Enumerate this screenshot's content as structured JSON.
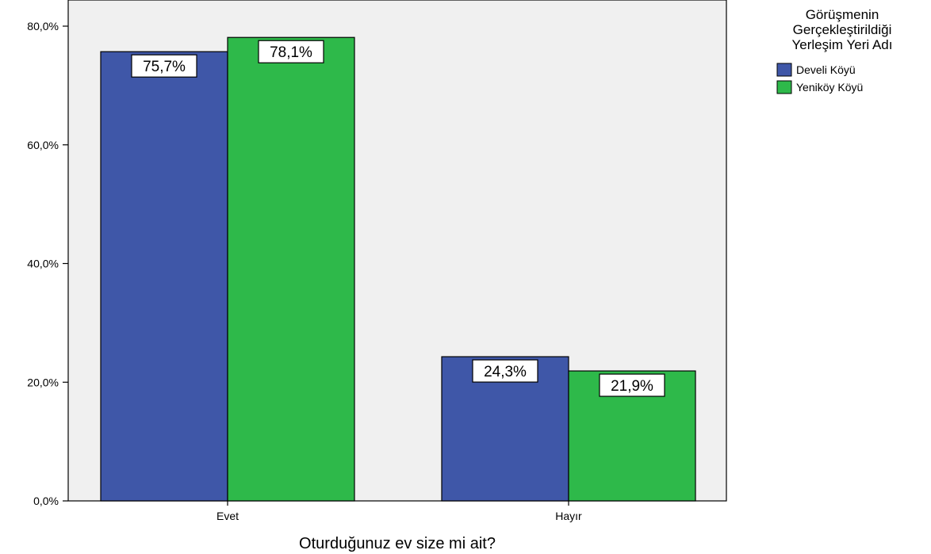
{
  "chart_data": {
    "type": "bar",
    "categories": [
      "Evet",
      "Hayır"
    ],
    "series": [
      {
        "name": "Develi Köyü",
        "values": [
          75.7,
          24.3
        ],
        "labels": [
          "75,7%",
          "24,3%"
        ],
        "color": "#3f57a8"
      },
      {
        "name": "Yeniköy Köyü",
        "values": [
          78.1,
          21.9
        ],
        "labels": [
          "78,1%",
          "21,9%"
        ],
        "color": "#2eb94a"
      }
    ],
    "xlabel": "Oturduğunuz ev size mi ait?",
    "ylabel": "",
    "ylim": [
      0,
      80
    ],
    "yticks": [
      0,
      20,
      40,
      60,
      80
    ],
    "ytick_labels": [
      "0,0%",
      "20,0%",
      "40,0%",
      "60,0%",
      "80,0%"
    ],
    "legend": {
      "title_lines": [
        "Görüşmenin",
        "Gerçekleştirildiği",
        "Yerleşim Yeri Adı"
      ],
      "placement": "right"
    },
    "plot_background": "#f0f0f0",
    "grid": false
  }
}
